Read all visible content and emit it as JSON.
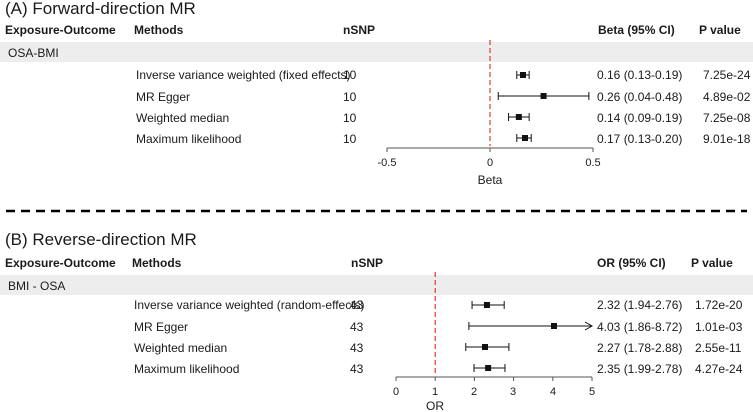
{
  "chart_data": [
    {
      "type": "forest",
      "title": "(A) Forward-direction MR",
      "headers": {
        "exposure": "Exposure-Outcome",
        "methods": "Methods",
        "nsnp": "nSNP",
        "estimate": "Beta (95% CI)",
        "pvalue": "P value"
      },
      "group": "OSA-BMI",
      "xlabel": "Beta",
      "xticks": [
        -0.5,
        0,
        0.5
      ],
      "xtick_labels": [
        "-0.5",
        "0",
        "0.5"
      ],
      "xlim": [
        -0.5,
        0.5
      ],
      "reference_line": 0,
      "rows": [
        {
          "method": "Inverse variance weighted (fixed effects)",
          "nsnp": "10",
          "est": 0.16,
          "lo": 0.13,
          "hi": 0.19,
          "ci_text": "0.16 (0.13-0.19)",
          "p": "7.25e-24"
        },
        {
          "method": "MR Egger",
          "nsnp": "10",
          "est": 0.26,
          "lo": 0.04,
          "hi": 0.48,
          "ci_text": "0.26 (0.04-0.48)",
          "p": "4.89e-02"
        },
        {
          "method": "Weighted median",
          "nsnp": "10",
          "est": 0.14,
          "lo": 0.09,
          "hi": 0.19,
          "ci_text": "0.14 (0.09-0.19)",
          "p": "7.25e-08"
        },
        {
          "method": "Maximum likelihood",
          "nsnp": "10",
          "est": 0.17,
          "lo": 0.13,
          "hi": 0.2,
          "ci_text": "0.17 (0.13-0.20)",
          "p": "9.01e-18"
        }
      ]
    },
    {
      "type": "forest",
      "title": "(B) Reverse-direction MR",
      "headers": {
        "exposure": "Exposure-Outcome",
        "methods": "Methods",
        "nsnp": "nSNP",
        "estimate": "OR (95% CI)",
        "pvalue": "P value"
      },
      "group": "BMI - OSA",
      "xlabel": "OR",
      "xticks": [
        0,
        1,
        2,
        3,
        4,
        5
      ],
      "xtick_labels": [
        "0",
        "1",
        "2",
        "3",
        "4",
        "5"
      ],
      "xlim": [
        0,
        5
      ],
      "reference_line": 1,
      "rows": [
        {
          "method": "Inverse variance weighted (random-effects)",
          "nsnp": "43",
          "est": 2.32,
          "lo": 1.94,
          "hi": 2.76,
          "ci_text": "2.32 (1.94-2.76)",
          "p": "1.72e-20"
        },
        {
          "method": "MR Egger",
          "nsnp": "43",
          "est": 4.03,
          "lo": 1.86,
          "hi": 8.72,
          "ci_text": "4.03 (1.86-8.72)",
          "p": "1.01e-03",
          "arrow_right": true
        },
        {
          "method": "Weighted median",
          "nsnp": "43",
          "est": 2.27,
          "lo": 1.78,
          "hi": 2.88,
          "ci_text": "2.27 (1.78-2.88)",
          "p": "2.55e-11"
        },
        {
          "method": "Maximum likelihood",
          "nsnp": "43",
          "est": 2.35,
          "lo": 1.99,
          "hi": 2.78,
          "ci_text": "2.35 (1.99-2.78)",
          "p": "4.27e-24"
        }
      ]
    }
  ]
}
